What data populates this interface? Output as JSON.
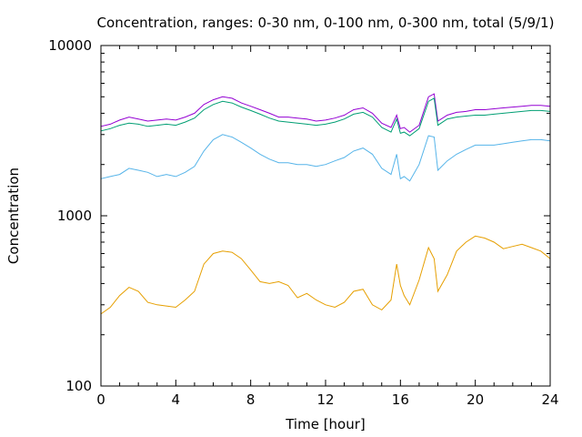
{
  "chart_data": {
    "type": "line",
    "title": "Concentration, ranges: 0-30 nm, 0-100 nm, 0-300 nm, total (5/9/1)",
    "xlabel": "Time [hour]",
    "ylabel": "Concentration",
    "xlim": [
      0,
      24
    ],
    "ylim": [
      100,
      10000
    ],
    "yscale": "log",
    "grid": false,
    "legend": "none",
    "xticks": [
      0,
      4,
      8,
      12,
      16,
      20,
      24
    ],
    "yticks": [
      100,
      1000,
      10000
    ],
    "x": [
      0,
      0.5,
      1,
      1.5,
      2,
      2.5,
      3,
      3.5,
      4,
      4.5,
      5,
      5.5,
      6,
      6.5,
      7,
      7.5,
      8,
      8.5,
      9,
      9.5,
      10,
      10.5,
      11,
      11.5,
      12,
      12.5,
      13,
      13.5,
      14,
      14.5,
      15,
      15.5,
      15.8,
      16,
      16.2,
      16.5,
      17,
      17.5,
      17.8,
      18,
      18.5,
      19,
      19.5,
      20,
      20.5,
      21,
      21.5,
      22,
      22.5,
      23,
      23.5,
      24
    ],
    "series": [
      {
        "color": "#9400d3",
        "values": [
          3350,
          3450,
          3650,
          3800,
          3700,
          3600,
          3650,
          3700,
          3650,
          3800,
          4000,
          4500,
          4800,
          5000,
          4900,
          4600,
          4400,
          4200,
          4000,
          3800,
          3800,
          3750,
          3700,
          3600,
          3650,
          3750,
          3900,
          4200,
          4300,
          4000,
          3500,
          3300,
          3900,
          3250,
          3300,
          3100,
          3400,
          5000,
          5200,
          3600,
          3900,
          4050,
          4100,
          4200,
          4200,
          4250,
          4300,
          4350,
          4400,
          4450,
          4450,
          4400
        ]
      },
      {
        "color": "#009e73",
        "values": [
          3150,
          3250,
          3400,
          3500,
          3450,
          3350,
          3400,
          3450,
          3400,
          3550,
          3750,
          4200,
          4500,
          4700,
          4600,
          4350,
          4150,
          3950,
          3750,
          3600,
          3550,
          3500,
          3450,
          3400,
          3450,
          3550,
          3700,
          3950,
          4050,
          3800,
          3300,
          3100,
          3700,
          3050,
          3100,
          2950,
          3250,
          4700,
          4900,
          3400,
          3700,
          3800,
          3850,
          3900,
          3900,
          3950,
          4000,
          4050,
          4100,
          4150,
          4150,
          4100
        ]
      },
      {
        "color": "#56b4e9",
        "values": [
          1650,
          1700,
          1750,
          1900,
          1850,
          1800,
          1700,
          1750,
          1700,
          1800,
          1950,
          2400,
          2800,
          3000,
          2900,
          2700,
          2500,
          2300,
          2150,
          2050,
          2050,
          2000,
          2000,
          1950,
          2000,
          2100,
          2200,
          2400,
          2500,
          2300,
          1900,
          1750,
          2300,
          1650,
          1700,
          1600,
          2000,
          2950,
          2900,
          1850,
          2100,
          2300,
          2450,
          2600,
          2600,
          2600,
          2650,
          2700,
          2750,
          2800,
          2800,
          2750
        ]
      },
      {
        "color": "#e69f00",
        "values": [
          265,
          290,
          340,
          380,
          360,
          310,
          300,
          295,
          290,
          320,
          360,
          520,
          600,
          620,
          610,
          560,
          480,
          410,
          400,
          410,
          390,
          330,
          350,
          320,
          300,
          290,
          310,
          360,
          370,
          300,
          280,
          320,
          520,
          390,
          340,
          300,
          420,
          650,
          560,
          360,
          450,
          620,
          700,
          760,
          740,
          700,
          640,
          660,
          680,
          650,
          620,
          560
        ]
      }
    ]
  }
}
